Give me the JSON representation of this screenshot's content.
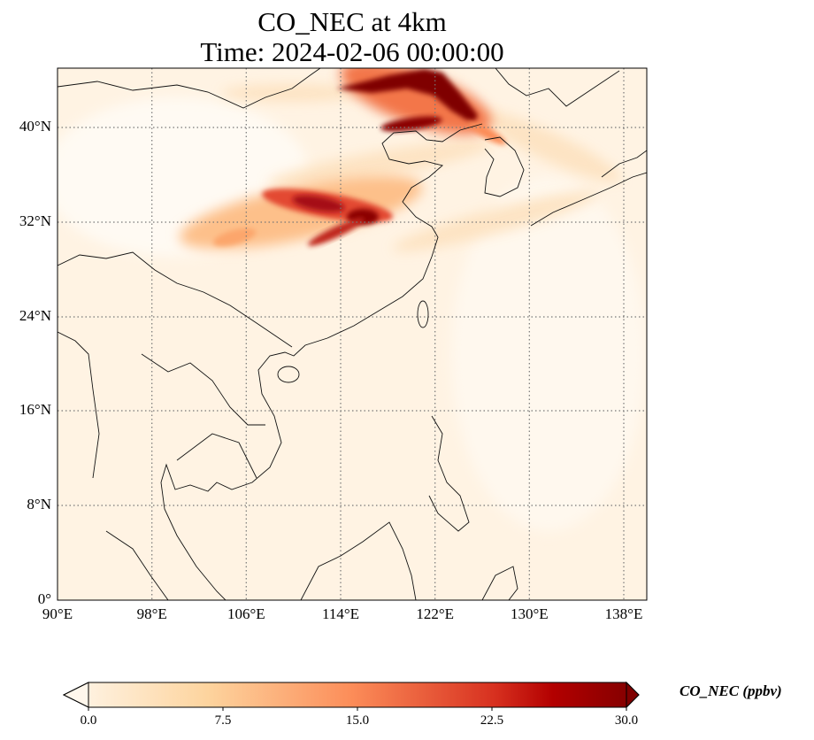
{
  "title": {
    "line1": "CO_NEC at 4km",
    "line2": "Time: 2024-02-06 00:00:00"
  },
  "map": {
    "variable": "CO_NEC",
    "level": "4km",
    "extent": {
      "lon": [
        90,
        140
      ],
      "lat": [
        0,
        45
      ]
    },
    "lat_ticks": [
      "40°N",
      "32°N",
      "24°N",
      "16°N",
      "8°N",
      "0°"
    ],
    "lon_ticks": [
      "90°E",
      "98°E",
      "106°E",
      "114°E",
      "122°E",
      "130°E",
      "138°E"
    ],
    "gridlines": "dotted"
  },
  "colorbar": {
    "label": "CO_NEC (ppbv)",
    "ticks": [
      "0.0",
      "7.5",
      "15.0",
      "22.5",
      "30.0"
    ],
    "range": [
      0,
      30
    ],
    "extend": "both",
    "colormap": [
      "#fff7ec",
      "#fdd49e",
      "#fc8d59",
      "#d7301f",
      "#b30000",
      "#7f0000"
    ]
  }
}
